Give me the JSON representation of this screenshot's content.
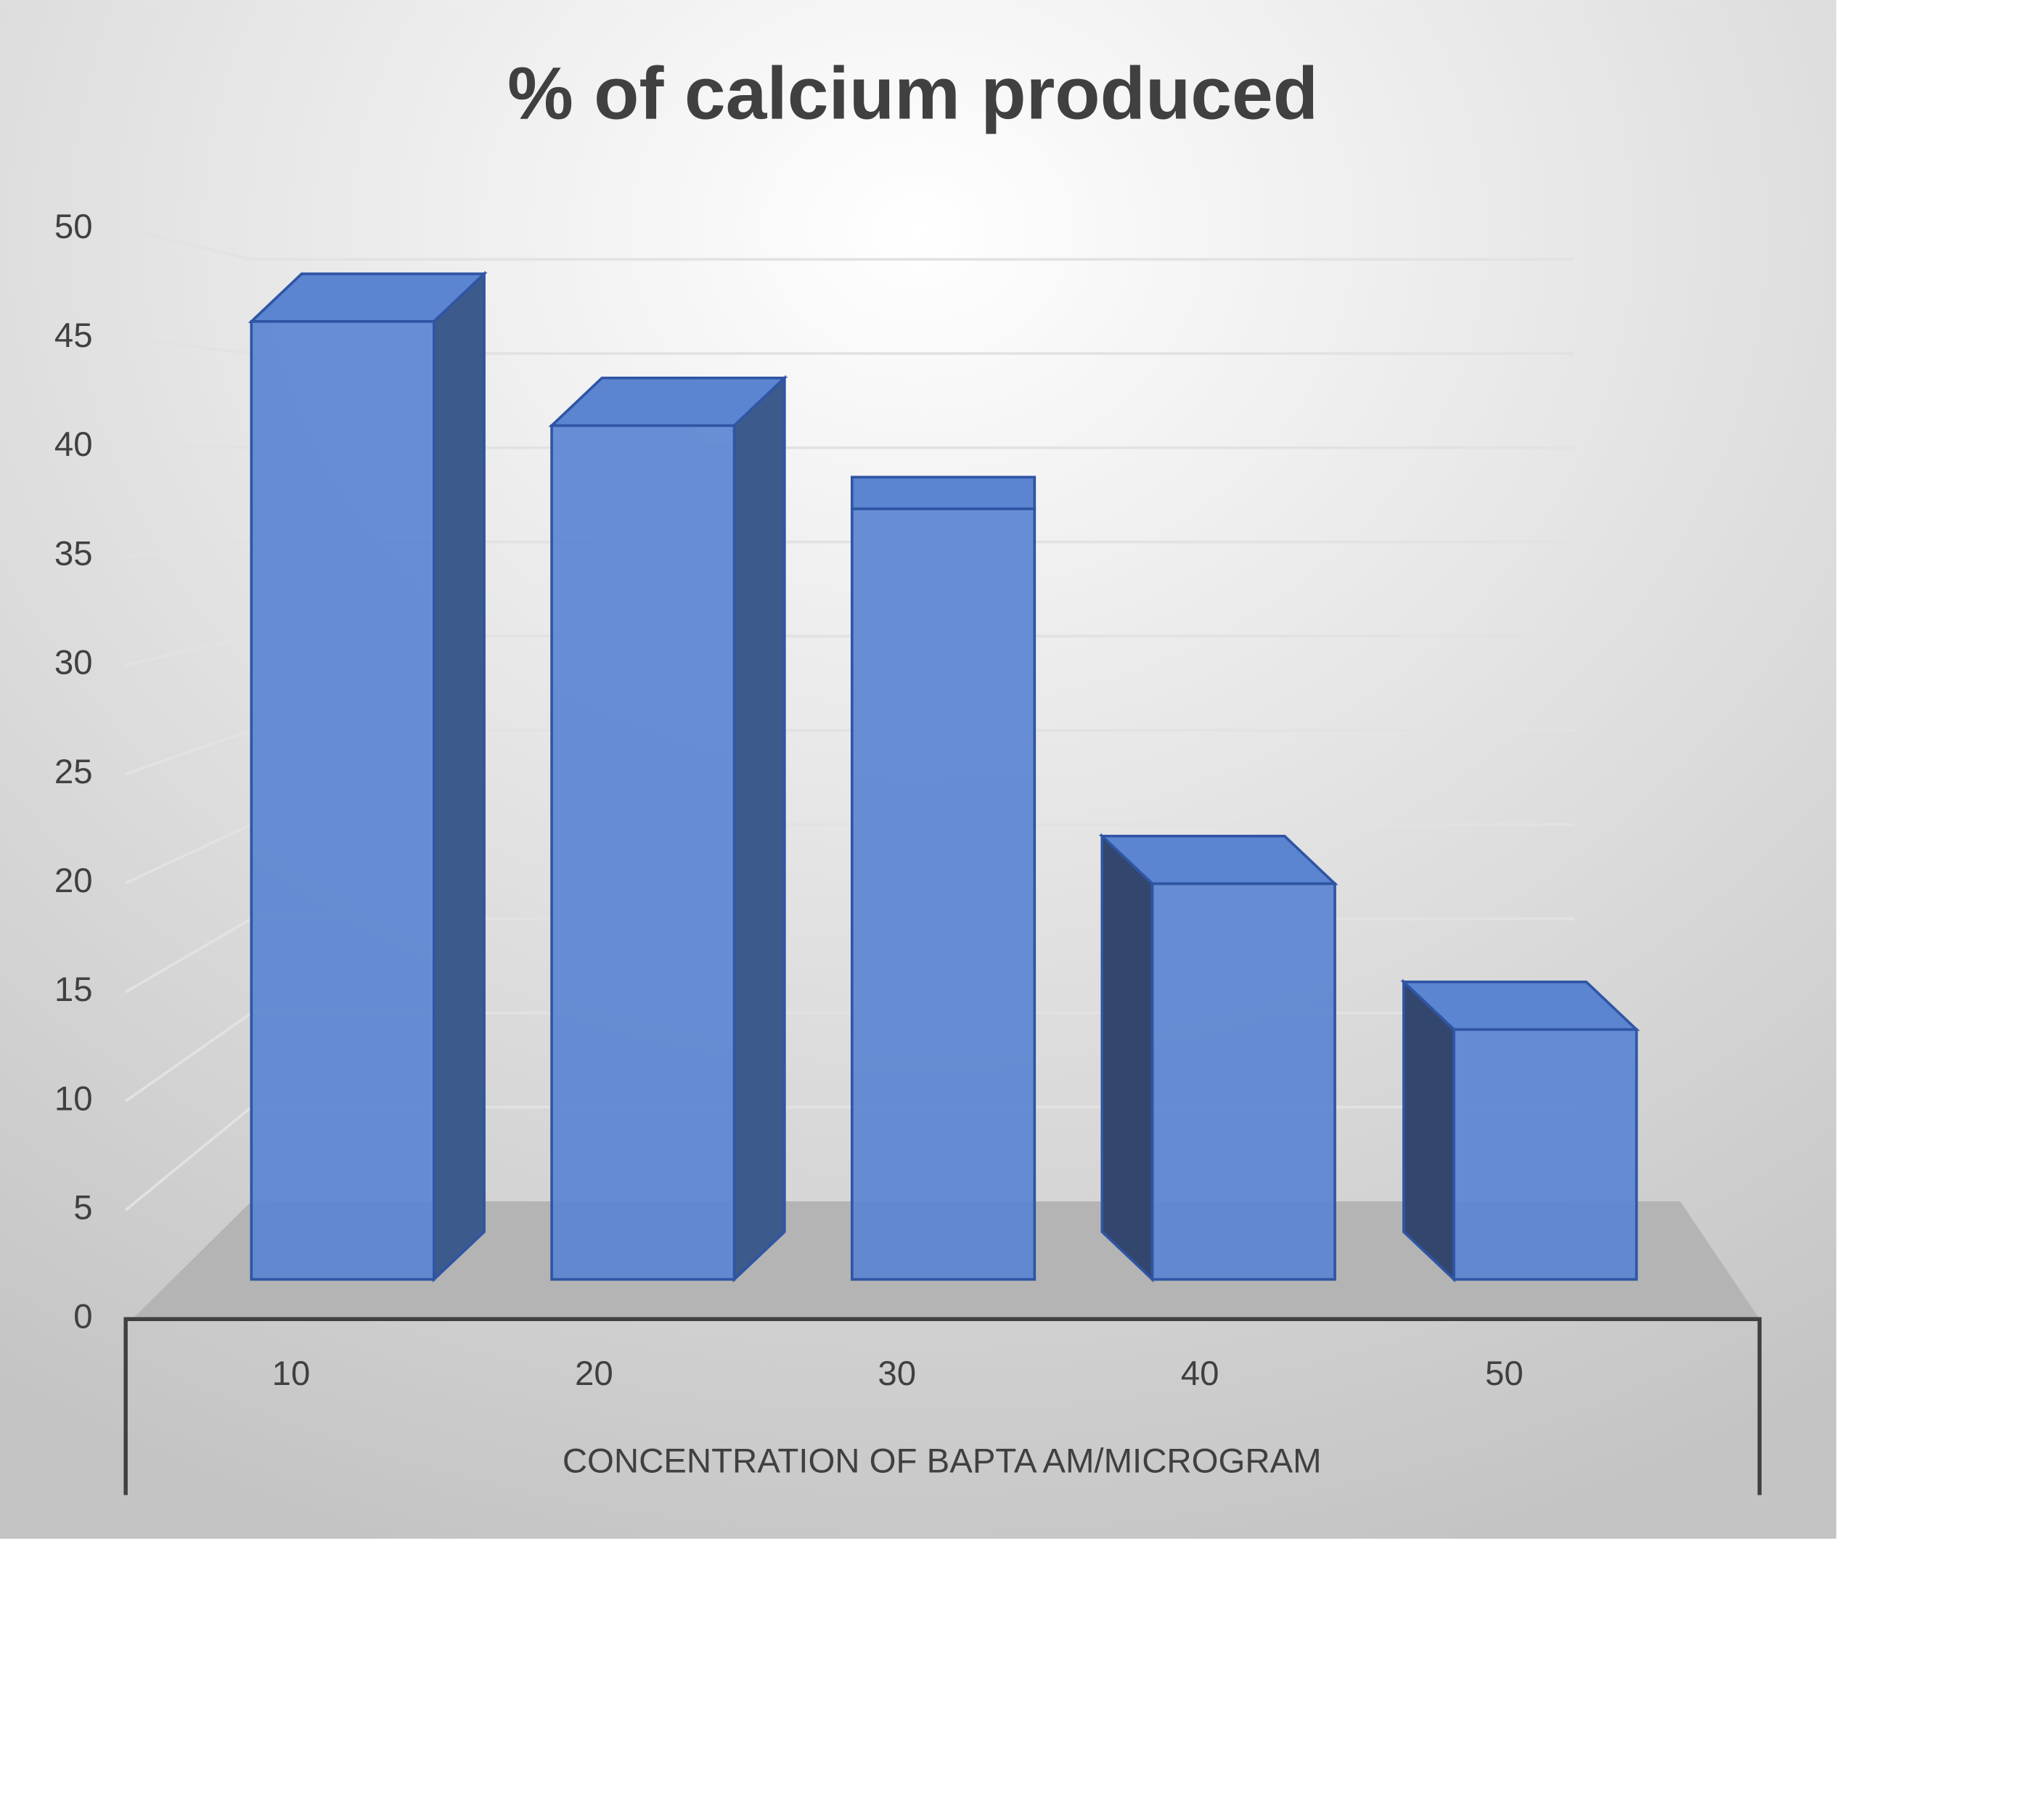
{
  "chart_data": {
    "type": "bar",
    "title": "% of calcium produced",
    "x_label": "CONCENTRATION OF BAPTA AM/MICROGRAM",
    "categories": [
      "10",
      "20",
      "30",
      "40",
      "50"
    ],
    "values": [
      46,
      41,
      37,
      19,
      12
    ],
    "color": "#5b84d1",
    "ylim": [
      0,
      50
    ],
    "yticks": [
      0,
      5,
      10,
      15,
      20,
      25,
      30,
      35,
      40,
      45,
      50
    ],
    "grid": true
  }
}
